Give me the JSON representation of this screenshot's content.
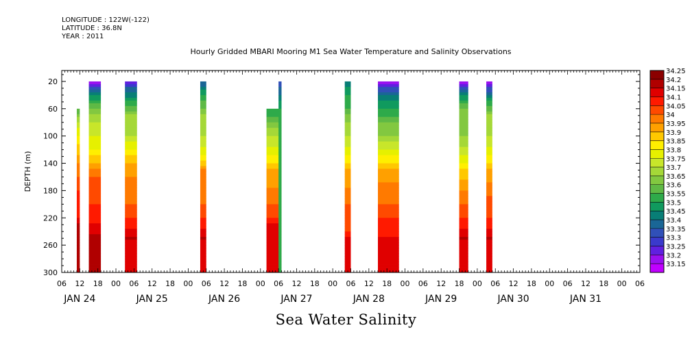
{
  "header": {
    "longitude": "LONGITUDE : 122W(-122)",
    "latitude": "LATITUDE : 36.8N",
    "year": "YEAR : 2011"
  },
  "chart_data": {
    "type": "heatmap",
    "title": "Hourly Gridded MBARI Mooring M1 Sea Water Temperature and Salinity Observations",
    "bottom_title": "Sea Water Salinity",
    "ylabel": "DEPTH (m)",
    "ylim": [
      300,
      0
    ],
    "y_ticks": [
      20,
      60,
      100,
      140,
      180,
      220,
      260,
      300
    ],
    "x_hour_ticks": [
      "06",
      "12",
      "18",
      "00",
      "06",
      "12",
      "18",
      "00",
      "06",
      "12",
      "18",
      "00",
      "06",
      "12",
      "18",
      "00",
      "06",
      "12",
      "18",
      "00",
      "06",
      "12",
      "18",
      "00",
      "06",
      "12",
      "18",
      "00",
      "06",
      "12",
      "18",
      "00",
      "06"
    ],
    "x_day_labels": [
      "JAN 24",
      "JAN 25",
      "JAN 26",
      "JAN 27",
      "JAN 28",
      "JAN 29",
      "JAN 30",
      "JAN 31"
    ],
    "colorbar": {
      "levels": [
        34.25,
        34.2,
        34.15,
        34.1,
        34.05,
        34,
        33.95,
        33.9,
        33.85,
        33.8,
        33.75,
        33.7,
        33.65,
        33.6,
        33.55,
        33.5,
        33.45,
        33.4,
        33.35,
        33.3,
        33.25,
        33.2,
        33.15
      ],
      "colors": [
        "#8b0000",
        "#b00000",
        "#e00000",
        "#ff1a00",
        "#ff4a00",
        "#ff7a00",
        "#ffa000",
        "#ffc800",
        "#ffef00",
        "#e6f000",
        "#c8e62a",
        "#a5d838",
        "#82c840",
        "#5fb945",
        "#2eaa4a",
        "#109a5e",
        "#087e76",
        "#1a6696",
        "#3050b8",
        "#3a3acc",
        "#6020e0",
        "#9a10f0",
        "#c000ff"
      ]
    },
    "segments": [
      {
        "start_hour": 11,
        "end_hour": 12,
        "top_depth": 60,
        "profile": [
          [
            60,
            33.6
          ],
          [
            80,
            33.75
          ],
          [
            100,
            33.85
          ],
          [
            140,
            34.0
          ],
          [
            180,
            34.1
          ],
          [
            220,
            34.15
          ],
          [
            240,
            34.25
          ],
          [
            300,
            34.2
          ]
        ]
      },
      {
        "start_hour": 15,
        "end_hour": 19,
        "top_depth": 20,
        "profile": [
          [
            20,
            33.2
          ],
          [
            30,
            33.35
          ],
          [
            40,
            33.5
          ],
          [
            60,
            33.65
          ],
          [
            80,
            33.75
          ],
          [
            100,
            33.8
          ],
          [
            120,
            33.85
          ],
          [
            140,
            33.95
          ],
          [
            160,
            34.05
          ],
          [
            200,
            34.1
          ],
          [
            230,
            34.15
          ],
          [
            260,
            34.25
          ],
          [
            300,
            34.2
          ]
        ]
      },
      {
        "start_hour": 27,
        "end_hour": 31,
        "top_depth": 20,
        "profile": [
          [
            20,
            33.25
          ],
          [
            30,
            33.4
          ],
          [
            50,
            33.55
          ],
          [
            70,
            33.7
          ],
          [
            100,
            33.75
          ],
          [
            120,
            33.85
          ],
          [
            140,
            33.95
          ],
          [
            160,
            34.0
          ],
          [
            200,
            34.05
          ],
          [
            220,
            34.1
          ],
          [
            250,
            34.2
          ],
          [
            300,
            34.15
          ]
        ]
      },
      {
        "start_hour": 52,
        "end_hour": 54,
        "top_depth": 20,
        "profile": [
          [
            20,
            33.4
          ],
          [
            40,
            33.55
          ],
          [
            70,
            33.7
          ],
          [
            100,
            33.75
          ],
          [
            130,
            33.85
          ],
          [
            150,
            34.0
          ],
          [
            200,
            34.05
          ],
          [
            220,
            34.1
          ],
          [
            250,
            34.2
          ],
          [
            300,
            34.15
          ]
        ]
      },
      {
        "start_hour": 74,
        "end_hour": 79,
        "top_depth": 60,
        "profile": [
          [
            60,
            33.55
          ],
          [
            80,
            33.65
          ],
          [
            100,
            33.75
          ],
          [
            130,
            33.85
          ],
          [
            150,
            33.95
          ],
          [
            200,
            34.05
          ],
          [
            220,
            34.1
          ],
          [
            240,
            34.2
          ],
          [
            300,
            34.15
          ]
        ]
      },
      {
        "start_hour": 78,
        "end_hour": 79,
        "top_depth": 20,
        "profile": [
          [
            20,
            33.35
          ],
          [
            40,
            33.45
          ],
          [
            60,
            33.55
          ]
        ]
      },
      {
        "start_hour": 100,
        "end_hour": 102,
        "top_depth": 20,
        "profile": [
          [
            20,
            33.45
          ],
          [
            40,
            33.55
          ],
          [
            60,
            33.6
          ],
          [
            80,
            33.7
          ],
          [
            100,
            33.75
          ],
          [
            130,
            33.85
          ],
          [
            150,
            33.95
          ],
          [
            200,
            34.05
          ],
          [
            240,
            34.1
          ],
          [
            260,
            34.2
          ],
          [
            300,
            34.15
          ]
        ]
      },
      {
        "start_hour": 111,
        "end_hour": 118,
        "top_depth": 20,
        "profile": [
          [
            20,
            33.2
          ],
          [
            30,
            33.35
          ],
          [
            40,
            33.45
          ],
          [
            60,
            33.55
          ],
          [
            80,
            33.65
          ],
          [
            100,
            33.7
          ],
          [
            130,
            33.85
          ],
          [
            150,
            33.95
          ],
          [
            170,
            34.0
          ],
          [
            200,
            34.05
          ],
          [
            220,
            34.1
          ],
          [
            250,
            34.15
          ],
          [
            300,
            34.15
          ]
        ]
      },
      {
        "start_hour": 138,
        "end_hour": 141,
        "top_depth": 20,
        "profile": [
          [
            20,
            33.2
          ],
          [
            30,
            33.35
          ],
          [
            40,
            33.5
          ],
          [
            60,
            33.65
          ],
          [
            100,
            33.7
          ],
          [
            130,
            33.8
          ],
          [
            150,
            33.9
          ],
          [
            180,
            34.0
          ],
          [
            220,
            34.1
          ],
          [
            250,
            34.2
          ],
          [
            300,
            34.15
          ]
        ]
      },
      {
        "start_hour": 147,
        "end_hour": 149,
        "top_depth": 20,
        "profile": [
          [
            20,
            33.2
          ],
          [
            30,
            33.35
          ],
          [
            50,
            33.55
          ],
          [
            70,
            33.7
          ],
          [
            100,
            33.75
          ],
          [
            130,
            33.85
          ],
          [
            150,
            33.95
          ],
          [
            190,
            34.05
          ],
          [
            220,
            34.1
          ],
          [
            250,
            34.2
          ],
          [
            300,
            34.15
          ]
        ]
      }
    ]
  }
}
